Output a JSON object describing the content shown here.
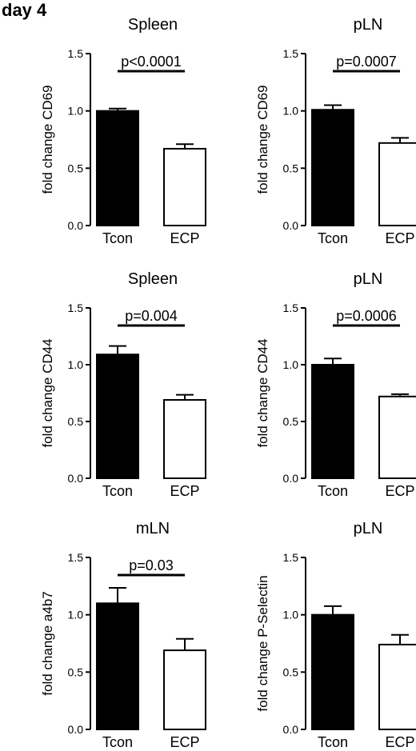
{
  "page_label": "day 4",
  "chart_data": [
    {
      "type": "bar",
      "title": "Spleen",
      "xlabel": "",
      "ylabel": "fold change CD69",
      "ylim": [
        0,
        1.5
      ],
      "yticks": [
        "0.0",
        "0.5",
        "1.0",
        "1.5"
      ],
      "categories": [
        "Tcon",
        "ECP"
      ],
      "values": [
        1.0,
        0.67
      ],
      "errors": [
        0.02,
        0.04
      ],
      "bar_fills": [
        "#000000",
        "#ffffff"
      ],
      "annotation": "p<0.0001"
    },
    {
      "type": "bar",
      "title": "pLN",
      "xlabel": "",
      "ylabel": "fold change CD69",
      "ylim": [
        0,
        1.5
      ],
      "yticks": [
        "0.0",
        "0.5",
        "1.0",
        "1.5"
      ],
      "categories": [
        "Tcon",
        "ECP"
      ],
      "values": [
        1.01,
        0.72
      ],
      "errors": [
        0.04,
        0.045
      ],
      "bar_fills": [
        "#000000",
        "#ffffff"
      ],
      "annotation": "p=0.0007"
    },
    {
      "type": "bar",
      "title": "Spleen",
      "xlabel": "",
      "ylabel": "fold change CD44",
      "ylim": [
        0,
        1.5
      ],
      "yticks": [
        "0.0",
        "0.5",
        "1.0",
        "1.5"
      ],
      "categories": [
        "Tcon",
        "ECP"
      ],
      "values": [
        1.09,
        0.69
      ],
      "errors": [
        0.075,
        0.045
      ],
      "bar_fills": [
        "#000000",
        "#ffffff"
      ],
      "annotation": "p=0.004"
    },
    {
      "type": "bar",
      "title": "pLN",
      "xlabel": "",
      "ylabel": "fold change CD44",
      "ylim": [
        0,
        1.5
      ],
      "yticks": [
        "0.0",
        "0.5",
        "1.0",
        "1.5"
      ],
      "categories": [
        "Tcon",
        "ECP"
      ],
      "values": [
        1.0,
        0.72
      ],
      "errors": [
        0.055,
        0.02
      ],
      "bar_fills": [
        "#000000",
        "#ffffff"
      ],
      "annotation": "p=0.0006"
    },
    {
      "type": "bar",
      "title": "mLN",
      "xlabel": "",
      "ylabel": "fold change a4b7",
      "ylim": [
        0,
        1.5
      ],
      "yticks": [
        "0.0",
        "0.5",
        "1.0",
        "1.5"
      ],
      "categories": [
        "Tcon",
        "ECP"
      ],
      "values": [
        1.1,
        0.69
      ],
      "errors": [
        0.135,
        0.1
      ],
      "bar_fills": [
        "#000000",
        "#ffffff"
      ],
      "annotation": "p=0.03"
    },
    {
      "type": "bar",
      "title": "pLN",
      "xlabel": "",
      "ylabel": "fold change P-Selectin",
      "ylim": [
        0,
        1.5
      ],
      "yticks": [
        "0.0",
        "0.5",
        "1.0",
        "1.5"
      ],
      "categories": [
        "Tcon",
        "ECP"
      ],
      "values": [
        1.0,
        0.74
      ],
      "errors": [
        0.075,
        0.085
      ],
      "bar_fills": [
        "#000000",
        "#ffffff"
      ],
      "annotation": ""
    }
  ]
}
